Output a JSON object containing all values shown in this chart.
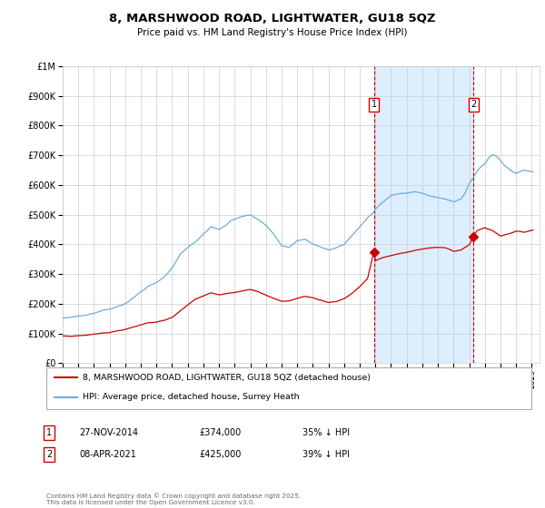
{
  "title": "8, MARSHWOOD ROAD, LIGHTWATER, GU18 5QZ",
  "subtitle": "Price paid vs. HM Land Registry's House Price Index (HPI)",
  "ylim": [
    0,
    1000000
  ],
  "yticks": [
    0,
    100000,
    200000,
    300000,
    400000,
    500000,
    600000,
    700000,
    800000,
    900000,
    1000000
  ],
  "sale1": {
    "date_num": 2014.9,
    "price": 374000,
    "label": "1",
    "date_str": "27-NOV-2014",
    "pct": "35% ↓ HPI"
  },
  "sale2": {
    "date_num": 2021.27,
    "price": 425000,
    "label": "2",
    "date_str": "08-APR-2021",
    "pct": "39% ↓ HPI"
  },
  "hpi_color": "#6baed6",
  "price_color": "#cc0000",
  "shade_color": "#ddeeff",
  "vline_color": "#cc0000",
  "background_color": "#ffffff",
  "grid_color": "#cccccc",
  "legend_line1": "8, MARSHWOOD ROAD, LIGHTWATER, GU18 5QZ (detached house)",
  "legend_line2": "HPI: Average price, detached house, Surrey Heath",
  "footer": "Contains HM Land Registry data © Crown copyright and database right 2025.\nThis data is licensed under the Open Government Licence v3.0."
}
